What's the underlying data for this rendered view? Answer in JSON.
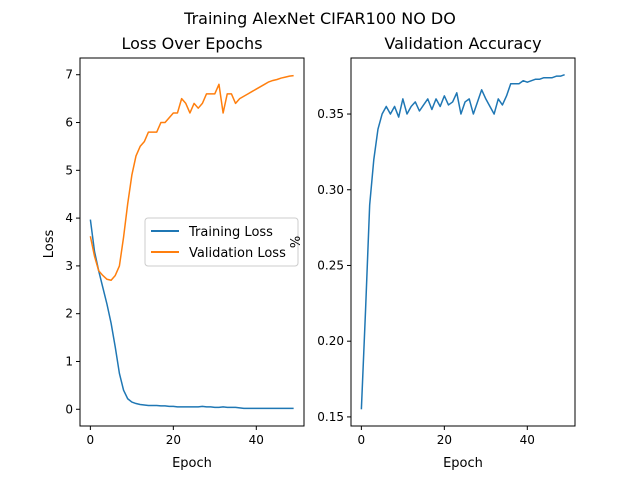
{
  "figure": {
    "suptitle": "Training AlexNet CIFAR100 NO DO"
  },
  "chart_data": [
    {
      "type": "line",
      "title": "Loss Over Epochs",
      "xlabel": "Epoch",
      "ylabel": "Loss",
      "xlim": [
        -2.5,
        51.5
      ],
      "ylim": [
        -0.35,
        7.35
      ],
      "xticks": [
        0,
        20,
        40
      ],
      "yticks": [
        0,
        1,
        2,
        3,
        4,
        5,
        6,
        7
      ],
      "grid": false,
      "legend": "center-right",
      "x": [
        0,
        1,
        2,
        3,
        4,
        5,
        6,
        7,
        8,
        9,
        10,
        11,
        12,
        13,
        14,
        15,
        16,
        17,
        18,
        19,
        20,
        21,
        22,
        23,
        24,
        25,
        26,
        27,
        28,
        29,
        30,
        31,
        32,
        33,
        34,
        35,
        36,
        37,
        38,
        39,
        40,
        41,
        42,
        43,
        44,
        45,
        46,
        47,
        48,
        49
      ],
      "series": [
        {
          "name": "Training Loss",
          "color": "#1f77b4",
          "values": [
            3.97,
            3.3,
            2.9,
            2.55,
            2.2,
            1.8,
            1.3,
            0.75,
            0.4,
            0.22,
            0.15,
            0.12,
            0.1,
            0.09,
            0.08,
            0.08,
            0.08,
            0.07,
            0.07,
            0.06,
            0.06,
            0.05,
            0.05,
            0.05,
            0.05,
            0.05,
            0.05,
            0.06,
            0.05,
            0.05,
            0.04,
            0.04,
            0.05,
            0.04,
            0.04,
            0.04,
            0.03,
            0.02,
            0.02,
            0.02,
            0.02,
            0.02,
            0.02,
            0.02,
            0.02,
            0.02,
            0.02,
            0.02,
            0.02,
            0.02
          ]
        },
        {
          "name": "Validation Loss",
          "color": "#ff7f0e",
          "values": [
            3.62,
            3.2,
            2.9,
            2.8,
            2.72,
            2.7,
            2.8,
            3.0,
            3.6,
            4.3,
            4.9,
            5.3,
            5.5,
            5.6,
            5.8,
            5.8,
            5.8,
            6.0,
            6.0,
            6.1,
            6.2,
            6.2,
            6.5,
            6.4,
            6.2,
            6.4,
            6.3,
            6.4,
            6.6,
            6.6,
            6.6,
            6.8,
            6.2,
            6.6,
            6.6,
            6.4,
            6.5,
            6.55,
            6.6,
            6.65,
            6.7,
            6.75,
            6.8,
            6.85,
            6.88,
            6.9,
            6.93,
            6.95,
            6.97,
            6.98
          ]
        }
      ]
    },
    {
      "type": "line",
      "title": "Validation Accuracy",
      "xlabel": "Epoch",
      "ylabel": "%",
      "xlim": [
        -2.5,
        51.5
      ],
      "ylim": [
        0.144,
        0.387
      ],
      "xticks": [
        0,
        20,
        40
      ],
      "yticks": [
        0.15,
        0.2,
        0.25,
        0.3,
        0.35
      ],
      "ytick_labels": [
        "0.15",
        "0.20",
        "0.25",
        "0.30",
        "0.35"
      ],
      "grid": false,
      "x": [
        0,
        1,
        2,
        3,
        4,
        5,
        6,
        7,
        8,
        9,
        10,
        11,
        12,
        13,
        14,
        15,
        16,
        17,
        18,
        19,
        20,
        21,
        22,
        23,
        24,
        25,
        26,
        27,
        28,
        29,
        30,
        31,
        32,
        33,
        34,
        35,
        36,
        37,
        38,
        39,
        40,
        41,
        42,
        43,
        44,
        45,
        46,
        47,
        48,
        49
      ],
      "series": [
        {
          "color": "#1f77b4",
          "values": [
            0.155,
            0.22,
            0.29,
            0.32,
            0.34,
            0.35,
            0.355,
            0.35,
            0.355,
            0.348,
            0.36,
            0.35,
            0.355,
            0.358,
            0.352,
            0.356,
            0.36,
            0.353,
            0.36,
            0.355,
            0.362,
            0.356,
            0.358,
            0.364,
            0.35,
            0.358,
            0.36,
            0.35,
            0.358,
            0.366,
            0.36,
            0.355,
            0.35,
            0.36,
            0.356,
            0.362,
            0.37,
            0.37,
            0.37,
            0.372,
            0.371,
            0.372,
            0.373,
            0.373,
            0.374,
            0.374,
            0.374,
            0.375,
            0.375,
            0.376
          ]
        }
      ]
    }
  ]
}
